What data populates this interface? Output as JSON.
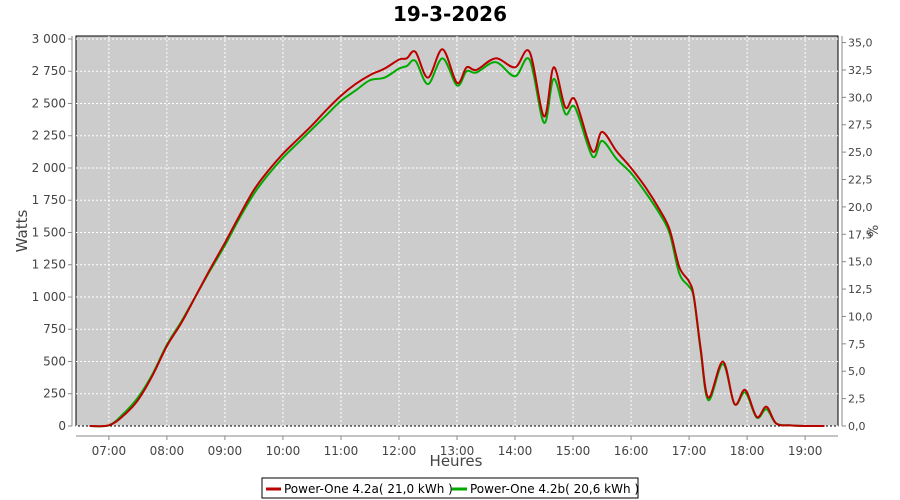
{
  "chart_data": {
    "type": "line",
    "title": "19-3-2026",
    "xlabel": "Heures",
    "ylabel": "Watts",
    "y2label": "%",
    "xlim": [
      "06:26",
      "19:34"
    ],
    "ylim": [
      0,
      3023
    ],
    "y2lim": [
      0,
      35.6
    ],
    "x_ticks": [
      "07:00",
      "08:00",
      "09:00",
      "10:00",
      "11:00",
      "12:00",
      "13:00",
      "14:00",
      "15:00",
      "16:00",
      "17:00",
      "18:00",
      "19:00"
    ],
    "y_ticks": [
      0,
      250,
      500,
      750,
      1000,
      1250,
      1500,
      1750,
      2000,
      2250,
      2500,
      2750,
      3000
    ],
    "y_tick_labels": [
      "0",
      "250",
      "500",
      "750",
      "1 000",
      "1 250",
      "1 500",
      "1 750",
      "2 000",
      "2 250",
      "2 500",
      "2 750",
      "3 000"
    ],
    "y2_ticks": [
      0,
      2.5,
      5,
      7.5,
      10,
      12.5,
      15,
      17.5,
      20,
      22.5,
      25,
      27.5,
      30,
      32.5,
      35
    ],
    "y2_tick_labels": [
      "0,0",
      "2,5",
      "5,0",
      "7,5",
      "10,0",
      "12,5",
      "15,0",
      "17,5",
      "20,0",
      "22,5",
      "25,0",
      "27,5",
      "30,0",
      "32,5",
      "35,0"
    ],
    "grid": true,
    "legend_placement": "bottom",
    "plot_background": "#cccccc",
    "x": [
      "06:40",
      "07:00",
      "07:15",
      "07:30",
      "07:45",
      "08:00",
      "08:15",
      "08:30",
      "08:45",
      "09:00",
      "09:15",
      "09:30",
      "09:45",
      "10:00",
      "10:15",
      "10:30",
      "10:45",
      "11:00",
      "11:15",
      "11:30",
      "11:45",
      "12:00",
      "12:08",
      "12:17",
      "12:30",
      "12:45",
      "13:00",
      "13:10",
      "13:20",
      "13:40",
      "14:00",
      "14:15",
      "14:30",
      "14:40",
      "14:52",
      "15:02",
      "15:20",
      "15:30",
      "15:45",
      "16:00",
      "16:15",
      "16:30",
      "16:40",
      "16:50",
      "17:00",
      "17:05",
      "17:12",
      "17:20",
      "17:35",
      "17:47",
      "17:58",
      "18:10",
      "18:20",
      "18:30",
      "18:45",
      "19:00",
      "19:20"
    ],
    "series": [
      {
        "name": "Power-One 4.2a( 21,0 kWh )",
        "color": "#bb0000",
        "values": [
          0,
          5,
          80,
          200,
          390,
          620,
          800,
          1010,
          1220,
          1420,
          1630,
          1830,
          1980,
          2110,
          2220,
          2330,
          2450,
          2560,
          2650,
          2720,
          2770,
          2840,
          2850,
          2900,
          2700,
          2920,
          2660,
          2780,
          2760,
          2850,
          2780,
          2900,
          2400,
          2780,
          2470,
          2530,
          2130,
          2280,
          2130,
          2000,
          1850,
          1670,
          1520,
          1230,
          1120,
          1000,
          600,
          220,
          500,
          170,
          280,
          70,
          150,
          20,
          5,
          0,
          0
        ]
      },
      {
        "name": "Power-One 4.2b( 20,6 kWh )",
        "color": "#00aa00",
        "values": [
          0,
          5,
          95,
          220,
          400,
          630,
          810,
          1010,
          1210,
          1400,
          1610,
          1800,
          1950,
          2080,
          2190,
          2300,
          2410,
          2520,
          2600,
          2680,
          2700,
          2770,
          2790,
          2830,
          2650,
          2850,
          2640,
          2750,
          2740,
          2820,
          2710,
          2840,
          2350,
          2690,
          2420,
          2470,
          2090,
          2210,
          2070,
          1960,
          1810,
          1640,
          1490,
          1180,
          1080,
          990,
          580,
          200,
          480,
          170,
          260,
          65,
          130,
          20,
          5,
          0,
          0
        ]
      }
    ]
  }
}
